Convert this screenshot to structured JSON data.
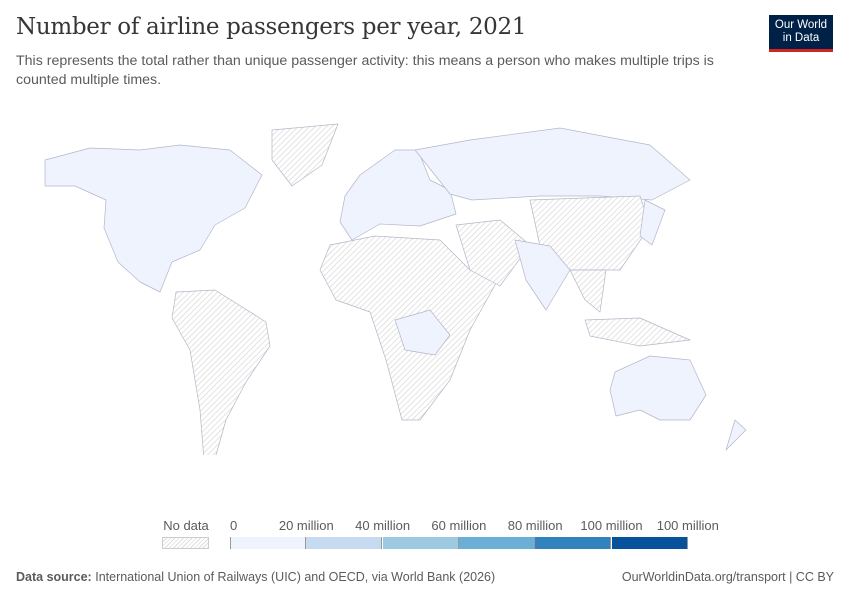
{
  "header": {
    "title": "Number of airline passengers per year, 2021",
    "subtitle": "This represents the total rather than unique passenger activity: this means a person who makes multiple trips is counted multiple times.",
    "logo_text": "Our World in Data"
  },
  "chart_data": {
    "type": "choropleth",
    "year": "2021",
    "legend": {
      "no_data_label": "No data",
      "tick_labels": [
        "0",
        "20 million",
        "40 million",
        "60 million",
        "80 million",
        "100 million",
        "100 million"
      ],
      "bins": [
        {
          "from": 0,
          "to": 20000000,
          "color": "#eef3fe"
        },
        {
          "from": 20000000,
          "to": 40000000,
          "color": "#c6dbef"
        },
        {
          "from": 40000000,
          "to": 60000000,
          "color": "#9ecae1"
        },
        {
          "from": 60000000,
          "to": 80000000,
          "color": "#6baed6"
        },
        {
          "from": 80000000,
          "to": 100000000,
          "color": "#3182bd"
        },
        {
          "from": 100000000,
          "to": 100000000,
          "color": "#08519c"
        }
      ],
      "no_data_pattern": "hatched"
    },
    "regions_with_data": [
      "North America",
      "Europe",
      "Russia",
      "India",
      "Japan",
      "Australia",
      "New Zealand",
      "DR Congo"
    ],
    "regions_no_data": [
      "Greenland",
      "South America",
      "Africa",
      "Middle East",
      "China",
      "Southeast Asia",
      "Indonesia"
    ]
  },
  "footer": {
    "source_label": "Data source:",
    "source_text": "International Union of Railways (UIC) and OECD, via World Bank (2026)",
    "link": "OurWorldinData.org/transport | CC BY"
  }
}
